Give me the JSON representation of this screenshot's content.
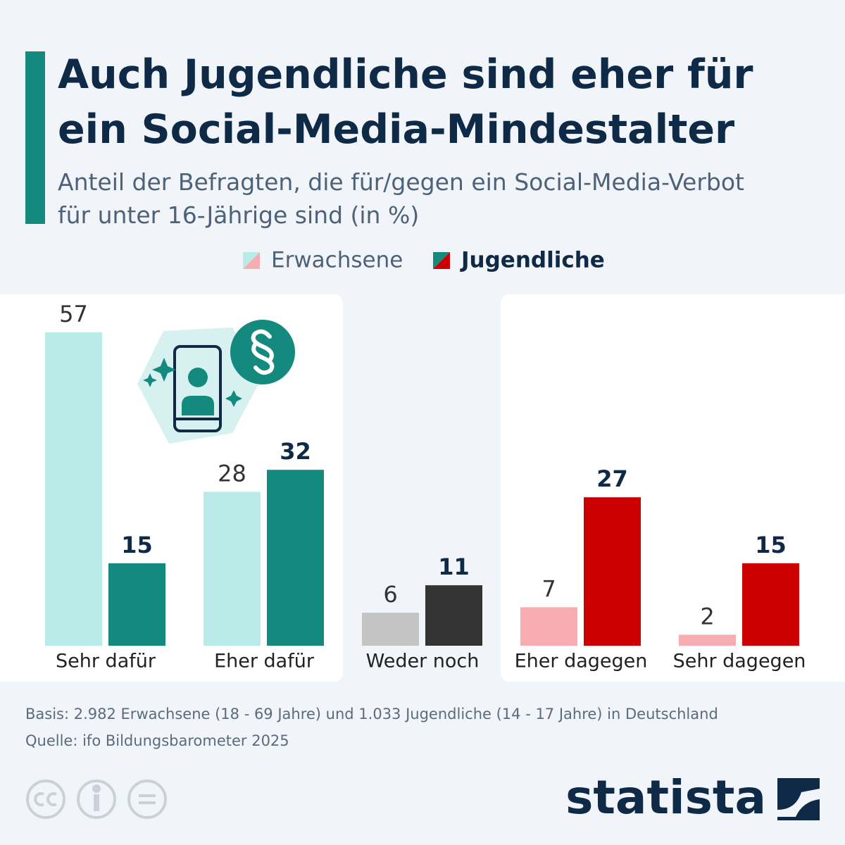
{
  "chart_data": {
    "type": "bar",
    "title": [
      "Auch Jugendliche sind eher für",
      "ein Social-Media-Mindestalter"
    ],
    "subtitle": [
      "Anteil der Befragten, die für/gegen ein Social-Media-Verbot",
      "für unter 16-Jährige sind (in %)"
    ],
    "categories": [
      "Sehr dafür",
      "Eher dafür",
      "Weder noch",
      "Eher dagegen",
      "Sehr dagegen"
    ],
    "series": [
      {
        "name": "Erwachsene",
        "colors": [
          "#b9ece8",
          "#b9ece8",
          "#c4c4c4",
          "#f6acb0",
          "#f6acb0"
        ],
        "values": [
          57,
          28,
          6,
          7,
          2
        ]
      },
      {
        "name": "Jugendliche",
        "colors": [
          "#148a7e",
          "#148a7e",
          "#333333",
          "#cc0000",
          "#cc0000"
        ],
        "values": [
          15,
          32,
          11,
          27,
          15
        ]
      }
    ],
    "basis": "Basis: 2.982 Erwachsene (18 - 69 Jahre) und 1.033 Jugendliche (14 - 17 Jahre) in Deutschland",
    "source": "Quelle: ifo Bildungsbarometer 2025",
    "brand": "statista"
  }
}
